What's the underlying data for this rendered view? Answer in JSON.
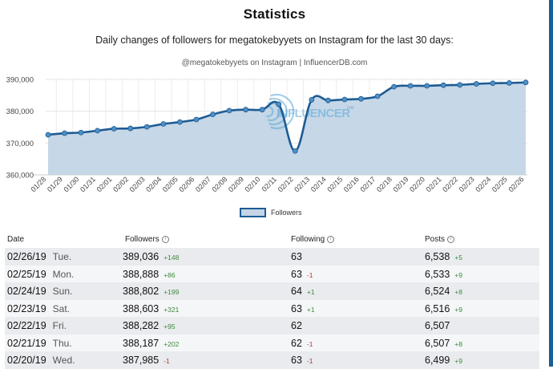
{
  "page": {
    "title": "Statistics",
    "subtitle": "Daily changes of followers for megatokebyyets on Instagram for the last 30 days:",
    "chart_caption": "@megatokebyyets on Instagram | InfluencerDB.com",
    "watermark": "INFLUENCER",
    "watermark_sup": "DB",
    "accent_color": "#1d5b94",
    "fill_color": "#c3d5e6"
  },
  "chart_data": {
    "type": "area",
    "title": "@megatokebyyets on Instagram | InfluencerDB.com",
    "xlabel": "",
    "ylabel": "",
    "ylim": [
      360000,
      390000
    ],
    "yticks": [
      360000,
      370000,
      380000,
      390000
    ],
    "ytick_labels": [
      "360,000",
      "370,000",
      "380,000",
      "390,000"
    ],
    "grid": true,
    "legend": "bottom-center",
    "categories": [
      "01/28",
      "01/29",
      "01/30",
      "01/31",
      "02/01",
      "02/02",
      "02/03",
      "02/04",
      "02/05",
      "02/06",
      "02/07",
      "02/08",
      "02/09",
      "02/10",
      "02/11",
      "02/12",
      "02/13",
      "02/14",
      "02/15",
      "02/16",
      "02/17",
      "02/18",
      "02/19",
      "02/20",
      "02/21",
      "02/22",
      "02/23",
      "02/24",
      "02/25",
      "02/26"
    ],
    "series": [
      {
        "name": "Followers",
        "values": [
          372600,
          373100,
          373300,
          373900,
          374500,
          374600,
          375100,
          376000,
          376600,
          377400,
          379000,
          380200,
          380500,
          380500,
          382200,
          367500,
          383600,
          383400,
          383700,
          383900,
          384700,
          387700,
          387986,
          387985,
          388187,
          388282,
          388603,
          388802,
          388888,
          389036
        ]
      }
    ]
  },
  "legend": {
    "label": "Followers"
  },
  "table": {
    "headers": {
      "date": "Date",
      "followers": "Followers",
      "following": "Following",
      "posts": "Posts"
    },
    "info_icon": "i",
    "rows": [
      {
        "date": "02/26/19",
        "day": "Tue.",
        "followers": "389,036",
        "followers_delta": "+148",
        "following": "63",
        "following_delta": "",
        "posts": "6,538",
        "posts_delta": "+5"
      },
      {
        "date": "02/25/19",
        "day": "Mon.",
        "followers": "388,888",
        "followers_delta": "+86",
        "following": "63",
        "following_delta": "-1",
        "posts": "6,533",
        "posts_delta": "+9"
      },
      {
        "date": "02/24/19",
        "day": "Sun.",
        "followers": "388,802",
        "followers_delta": "+199",
        "following": "64",
        "following_delta": "+1",
        "posts": "6,524",
        "posts_delta": "+8"
      },
      {
        "date": "02/23/19",
        "day": "Sat.",
        "followers": "388,603",
        "followers_delta": "+321",
        "following": "63",
        "following_delta": "+1",
        "posts": "6,516",
        "posts_delta": "+9"
      },
      {
        "date": "02/22/19",
        "day": "Fri.",
        "followers": "388,282",
        "followers_delta": "+95",
        "following": "62",
        "following_delta": "",
        "posts": "6,507",
        "posts_delta": ""
      },
      {
        "date": "02/21/19",
        "day": "Thu.",
        "followers": "388,187",
        "followers_delta": "+202",
        "following": "62",
        "following_delta": "-1",
        "posts": "6,507",
        "posts_delta": "+8"
      },
      {
        "date": "02/20/19",
        "day": "Wed.",
        "followers": "387,985",
        "followers_delta": "-1",
        "following": "63",
        "following_delta": "-1",
        "posts": "6,499",
        "posts_delta": "+9"
      }
    ]
  }
}
